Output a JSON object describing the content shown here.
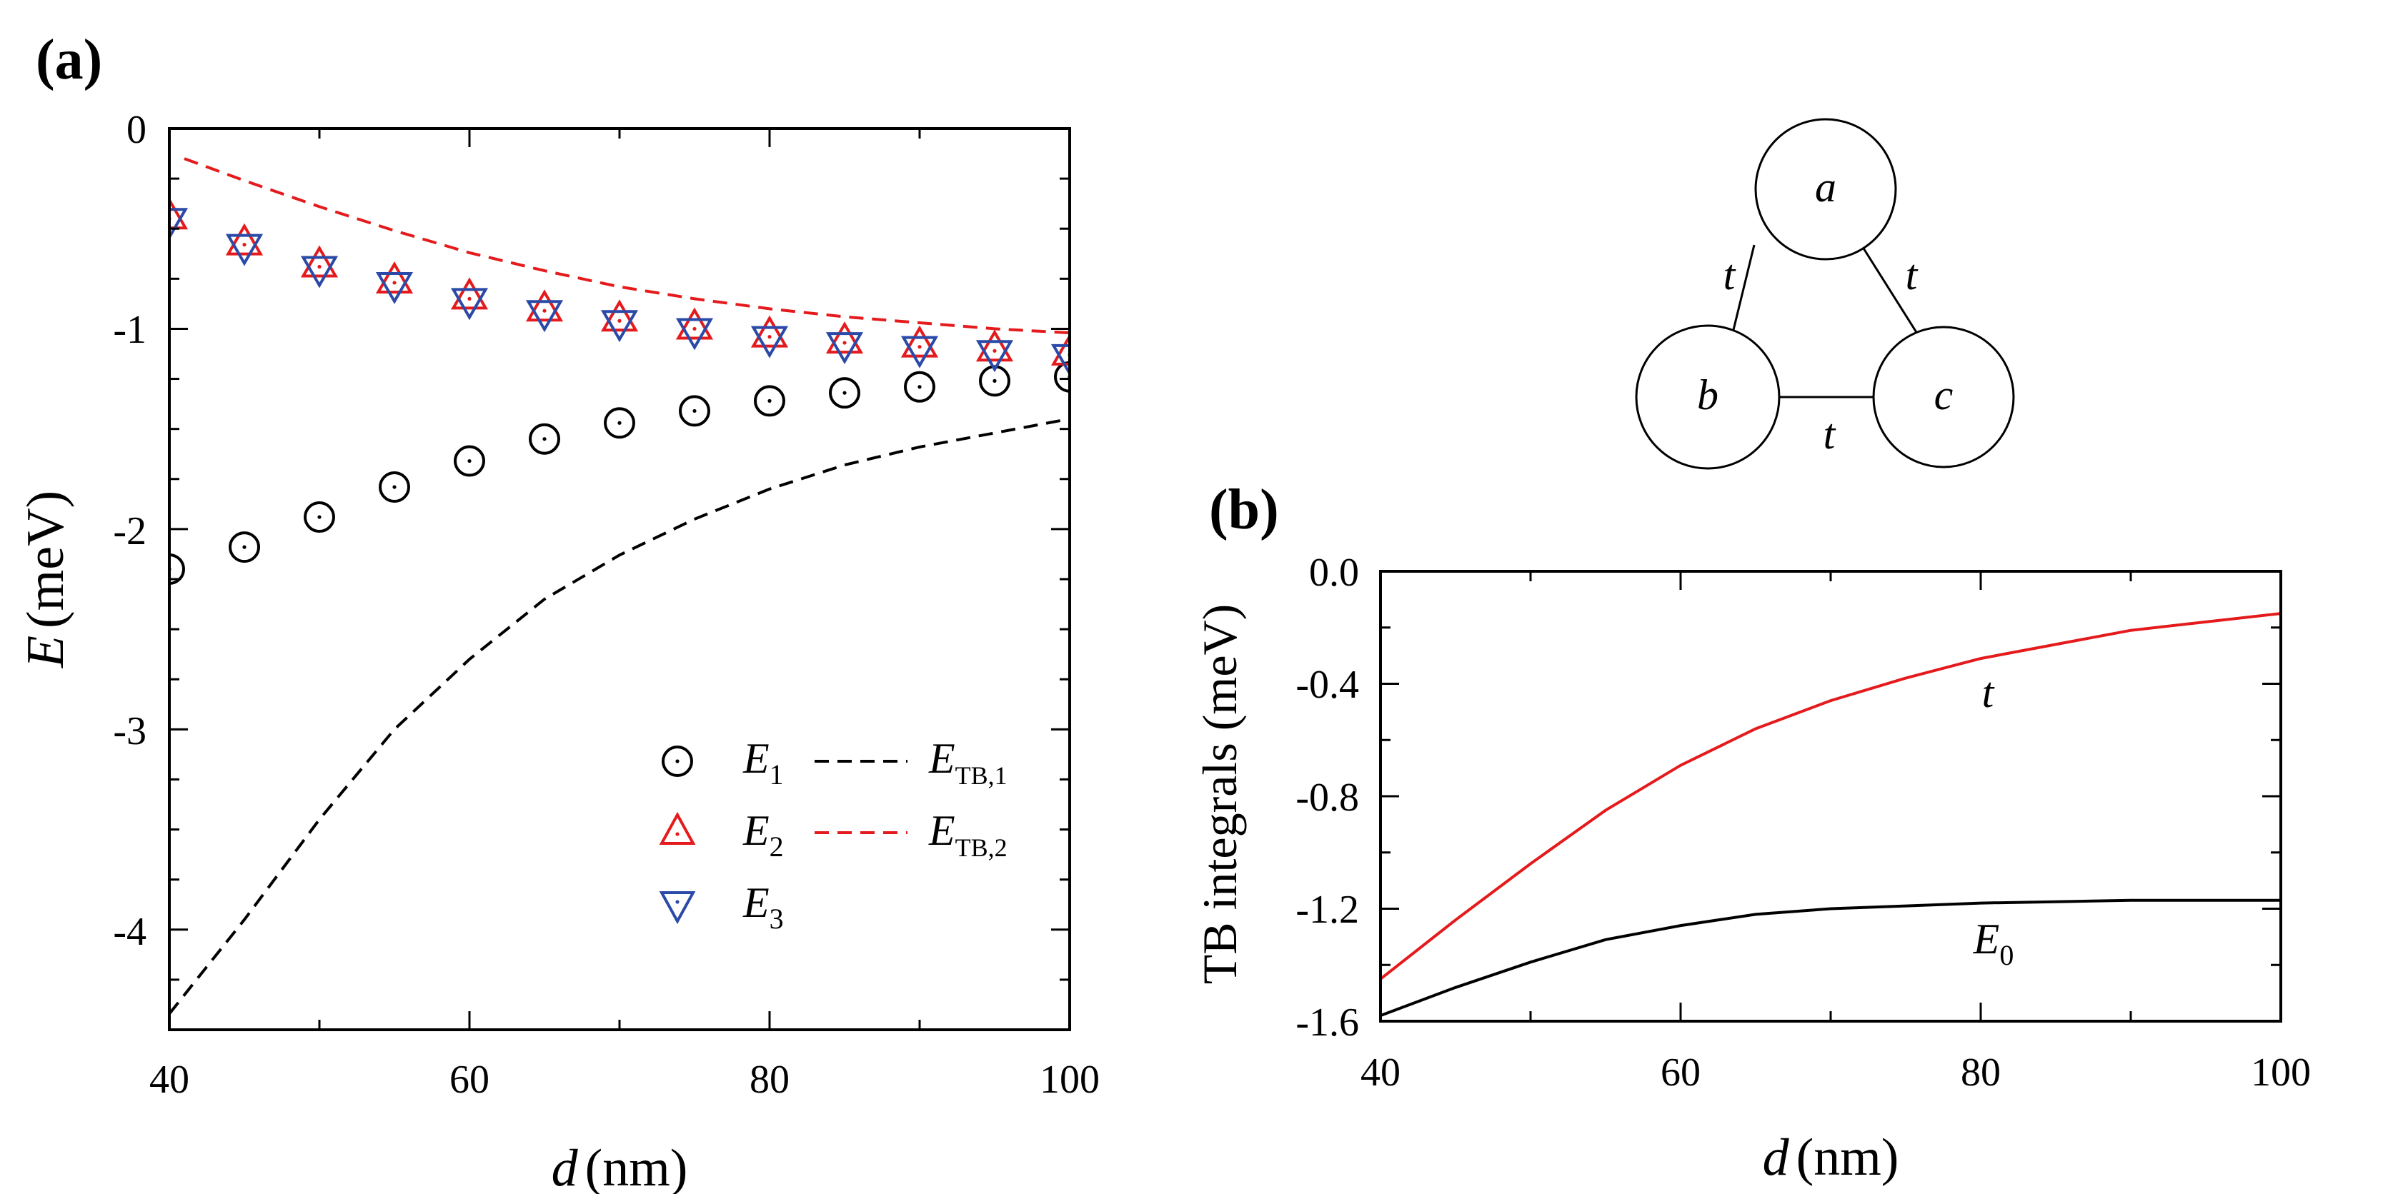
{
  "chart_data": [
    {
      "panel_label": "(a)",
      "type": "scatter",
      "xlabel": "d",
      "xlabel_unit": "(nm)",
      "ylabel": "E",
      "ylabel_unit": "(meV)",
      "xlim": [
        40,
        100
      ],
      "ylim": [
        -4.5,
        0
      ],
      "xticks": [
        "40",
        "60",
        "80",
        "100"
      ],
      "yticks": [
        "0",
        "-1",
        "-2",
        "-3",
        "-4"
      ],
      "grid": false,
      "legend_position": "bottom-right",
      "x": [
        40,
        45,
        50,
        55,
        60,
        65,
        70,
        75,
        80,
        85,
        90,
        95,
        100
      ],
      "series": [
        {
          "name": "E",
          "sub": "1",
          "marker": "circle-dot",
          "color": "#000000",
          "values": [
            -2.2,
            -2.09,
            -1.94,
            -1.79,
            -1.66,
            -1.55,
            -1.47,
            -1.41,
            -1.36,
            -1.32,
            -1.29,
            -1.26,
            -1.24
          ]
        },
        {
          "name": "E",
          "sub": "2",
          "marker": "triangle-up",
          "color": "#e41a1c",
          "values": [
            -0.45,
            -0.58,
            -0.69,
            -0.77,
            -0.85,
            -0.91,
            -0.96,
            -1.0,
            -1.04,
            -1.07,
            -1.09,
            -1.11,
            -1.13
          ]
        },
        {
          "name": "E",
          "sub": "3",
          "marker": "triangle-down",
          "color": "#2b4aa8",
          "values": [
            -0.45,
            -0.58,
            -0.69,
            -0.77,
            -0.85,
            -0.91,
            -0.96,
            -1.0,
            -1.04,
            -1.07,
            -1.09,
            -1.11,
            -1.13
          ]
        },
        {
          "name": "E",
          "sub": "TB,1",
          "style": "dashed",
          "color": "#000000",
          "x": [
            40,
            45,
            50,
            55,
            60,
            65,
            70,
            75,
            80,
            85,
            90,
            95,
            100
          ],
          "values": [
            -4.42,
            -3.95,
            -3.45,
            -3.0,
            -2.65,
            -2.35,
            -2.13,
            -1.95,
            -1.8,
            -1.68,
            -1.59,
            -1.52,
            -1.45
          ]
        },
        {
          "name": "E",
          "sub": "TB,2",
          "style": "dashed",
          "color": "#e41a1c",
          "x": [
            41,
            45,
            50,
            55,
            60,
            65,
            70,
            75,
            80,
            85,
            90,
            95,
            100
          ],
          "values": [
            -0.15,
            -0.26,
            -0.39,
            -0.51,
            -0.62,
            -0.71,
            -0.79,
            -0.85,
            -0.9,
            -0.94,
            -0.97,
            -1.0,
            -1.02
          ]
        }
      ]
    },
    {
      "panel_label": "(b)",
      "type": "line",
      "xlabel": "d",
      "xlabel_unit": "(nm)",
      "ylabel": "TB integrals (meV)",
      "xlim": [
        40,
        100
      ],
      "ylim": [
        -1.6,
        0.0
      ],
      "xticks": [
        "40",
        "60",
        "80",
        "100"
      ],
      "yticks": [
        "0.0",
        "-0.4",
        "-0.8",
        "-1.2",
        "-1.6"
      ],
      "grid": false,
      "x": [
        40,
        45,
        50,
        55,
        60,
        65,
        70,
        75,
        80,
        85,
        90,
        95,
        100
      ],
      "series": [
        {
          "name": "t",
          "color": "#e41a1c",
          "values": [
            -1.45,
            -1.24,
            -1.04,
            -0.85,
            -0.69,
            -0.56,
            -0.46,
            -0.38,
            -0.31,
            -0.26,
            -0.21,
            -0.18,
            -0.15
          ]
        },
        {
          "name": "E",
          "sub": "0",
          "color": "#000000",
          "values": [
            -1.58,
            -1.48,
            -1.39,
            -1.31,
            -1.26,
            -1.22,
            -1.2,
            -1.19,
            -1.18,
            -1.175,
            -1.17,
            -1.17,
            -1.17
          ]
        }
      ]
    }
  ],
  "diagram": {
    "nodes": [
      "a",
      "b",
      "c"
    ],
    "edge_label": "t"
  }
}
